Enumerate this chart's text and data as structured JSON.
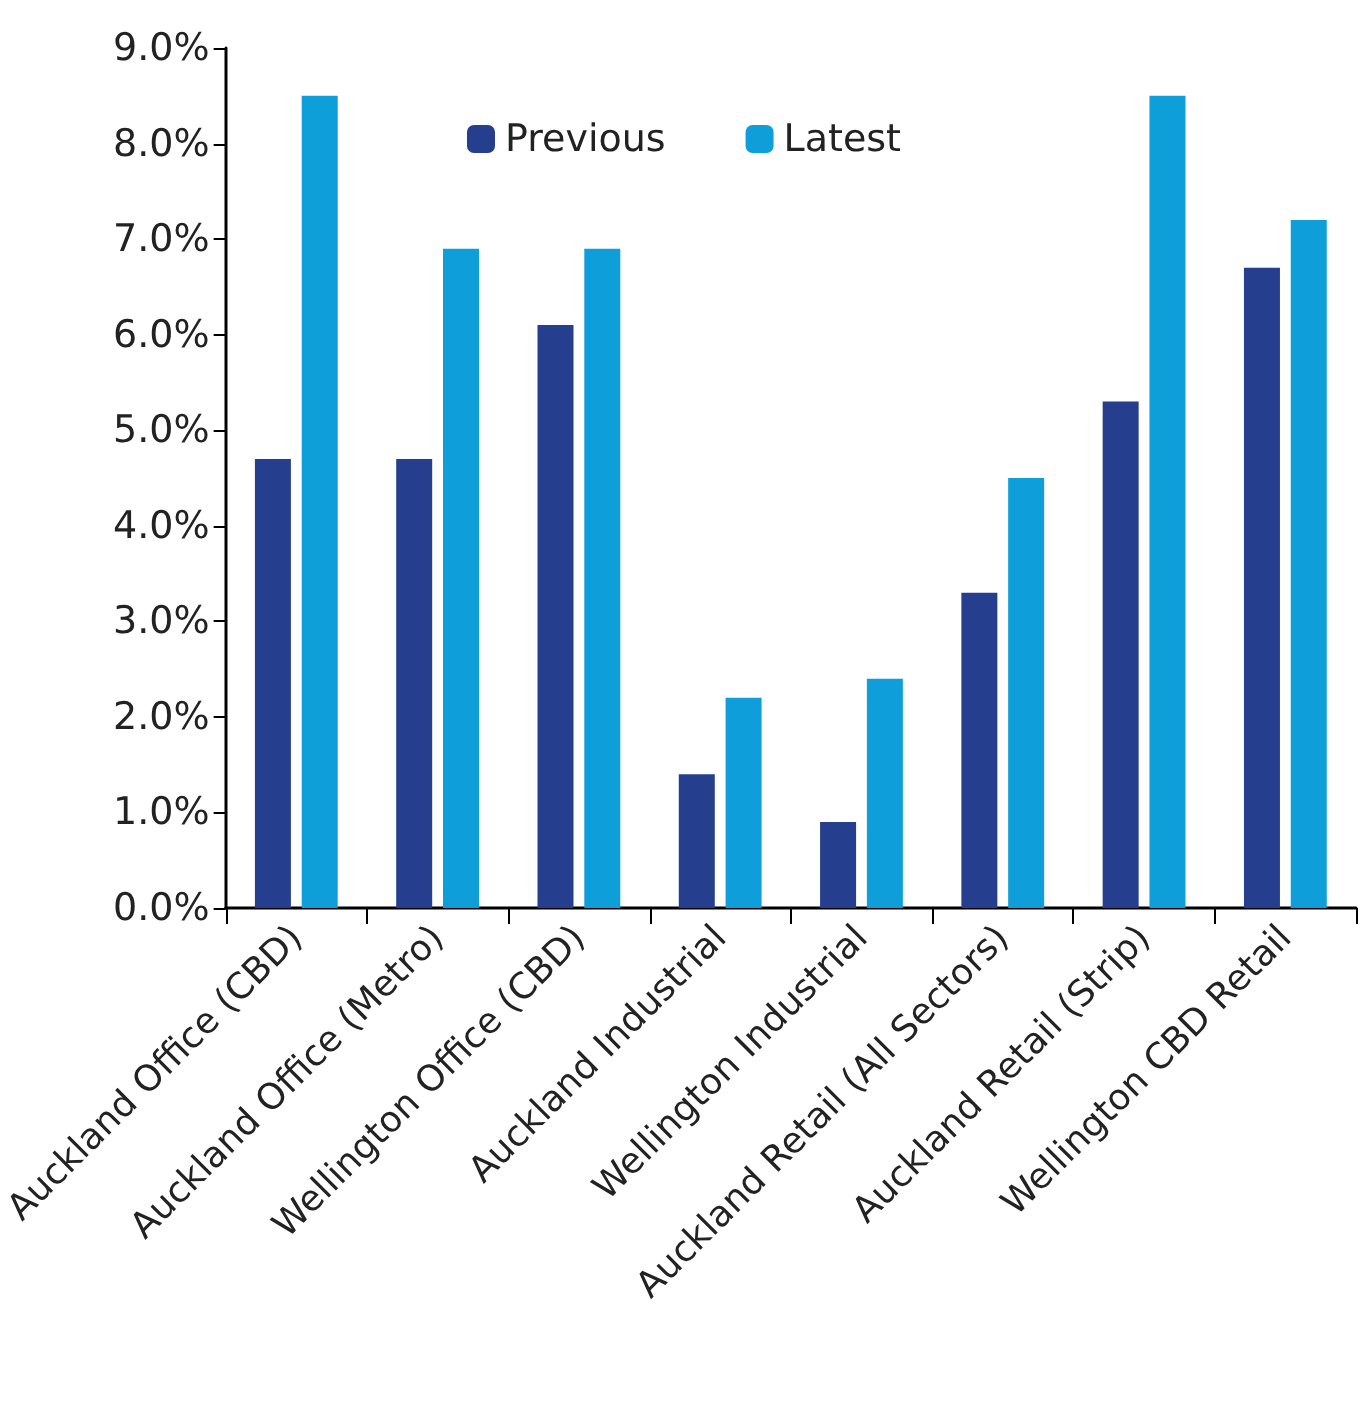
{
  "chart_data": {
    "type": "bar",
    "categories": [
      "Auckland Office (CBD)",
      "Auckland Office (Metro)",
      "Wellington Office (CBD)",
      "Auckland Industrial",
      "Wellington Industrial",
      "Auckland Retail (All Sectors)",
      "Auckland Retail (Strip)",
      "Wellington CBD Retail"
    ],
    "series": [
      {
        "name": "Previous",
        "color": "#253f8e",
        "values": [
          4.7,
          4.7,
          6.1,
          1.4,
          0.9,
          3.3,
          5.3,
          6.7
        ]
      },
      {
        "name": "Latest",
        "color": "#0e9fda",
        "values": [
          8.5,
          6.9,
          6.9,
          2.2,
          2.4,
          4.5,
          8.5,
          7.2
        ]
      }
    ],
    "ylim": [
      0,
      9
    ],
    "yticks": [
      {
        "value": 0,
        "label": "0.0%"
      },
      {
        "value": 1,
        "label": "1.0%"
      },
      {
        "value": 2,
        "label": "2.0%"
      },
      {
        "value": 3,
        "label": "3.0%"
      },
      {
        "value": 4,
        "label": "4.0%"
      },
      {
        "value": 5,
        "label": "5.0%"
      },
      {
        "value": 6,
        "label": "6.0%"
      },
      {
        "value": 7,
        "label": "7.0%"
      },
      {
        "value": 8,
        "label": "8.0%"
      },
      {
        "value": 9,
        "label": "9.0%"
      }
    ],
    "grid": false,
    "legend": "top"
  }
}
